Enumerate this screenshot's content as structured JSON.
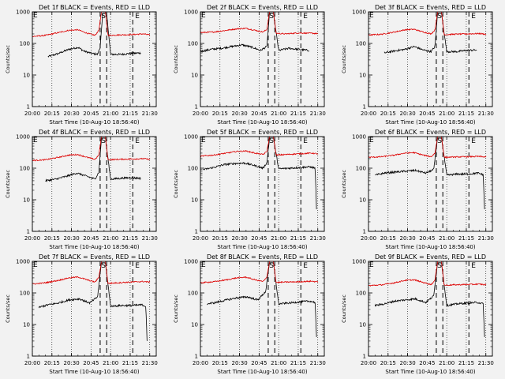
{
  "figure": {
    "background": "#f2f2f2",
    "events_color": "#000000",
    "lld_color": "#dd0000",
    "xlabel": "Start Time (10-Aug-10 18:56:40)",
    "ylabel": "Counts/sec",
    "marker_E": "E",
    "marker_S": "S"
  },
  "chart_data": [
    {
      "type": "line",
      "title": "Det 1f BLACK = Events, RED = LLD",
      "xlim": [
        "20:00",
        "21:35"
      ],
      "ylim": [
        1,
        1000
      ],
      "yscale": "log",
      "grid": "dotted",
      "xticks": [
        "20:00",
        "20:15",
        "20:30",
        "20:45",
        "21:00",
        "21:15",
        "21:30"
      ],
      "yticks": [
        "1",
        "10",
        "100",
        "1000"
      ],
      "dashed_lines_at": [
        "20:52",
        "20:57",
        "21:17"
      ],
      "events_end_dropout": false,
      "series": [
        {
          "name": "Events",
          "color": "#000000",
          "x": [
            "20:12",
            "20:20",
            "20:28",
            "20:35",
            "20:40",
            "20:46",
            "20:50",
            "20:52",
            "20:54",
            "20:57",
            "21:00",
            "21:08",
            "21:15",
            "21:23"
          ],
          "y": [
            38,
            48,
            65,
            75,
            56,
            48,
            45,
            75,
            900,
            900,
            45,
            45,
            48,
            50
          ]
        },
        {
          "name": "LLD",
          "color": "#dd0000",
          "x": [
            "20:00",
            "20:10",
            "20:20",
            "20:28",
            "20:35",
            "20:42",
            "20:48",
            "20:51",
            "20:53",
            "20:56",
            "20:58",
            "21:05",
            "21:15",
            "21:25",
            "21:30"
          ],
          "y": [
            165,
            180,
            220,
            260,
            270,
            210,
            180,
            260,
            1000,
            1000,
            180,
            185,
            190,
            200,
            185
          ]
        }
      ]
    },
    {
      "type": "line",
      "title": "Det 2f BLACK = Events, RED = LLD",
      "xlim": [
        "20:00",
        "21:35"
      ],
      "ylim": [
        1,
        1000
      ],
      "yscale": "log",
      "grid": "dotted",
      "xticks": [
        "20:00",
        "20:15",
        "20:30",
        "20:45",
        "21:00",
        "21:15",
        "21:30"
      ],
      "yticks": [
        "1",
        "10",
        "100",
        "1000"
      ],
      "dashed_lines_at": [
        "20:52",
        "20:57",
        "21:17"
      ],
      "events_end_dropout": false,
      "series": [
        {
          "name": "Events",
          "color": "#000000",
          "x": [
            "20:00",
            "20:08",
            "20:16",
            "20:24",
            "20:32",
            "20:40",
            "20:46",
            "20:51",
            "20:53",
            "20:56",
            "21:00",
            "21:08",
            "21:15",
            "21:23"
          ],
          "y": [
            55,
            65,
            70,
            80,
            90,
            75,
            60,
            80,
            900,
            900,
            60,
            70,
            65,
            60
          ]
        },
        {
          "name": "LLD",
          "color": "#dd0000",
          "x": [
            "20:00",
            "20:10",
            "20:20",
            "20:28",
            "20:35",
            "20:42",
            "20:48",
            "20:51",
            "20:53",
            "20:56",
            "20:58",
            "21:05",
            "21:15",
            "21:25",
            "21:30"
          ],
          "y": [
            220,
            230,
            260,
            290,
            300,
            260,
            230,
            280,
            1000,
            1000,
            210,
            200,
            215,
            210,
            205
          ]
        }
      ]
    },
    {
      "type": "line",
      "title": "Det 3f BLACK = Events, RED = LLD",
      "xlim": [
        "20:00",
        "21:35"
      ],
      "ylim": [
        1,
        1000
      ],
      "yscale": "log",
      "grid": "dotted",
      "xticks": [
        "20:00",
        "20:15",
        "20:30",
        "20:45",
        "21:00",
        "21:15",
        "21:30"
      ],
      "yticks": [
        "1",
        "10",
        "100",
        "1000"
      ],
      "dashed_lines_at": [
        "20:52",
        "20:57",
        "21:17"
      ],
      "events_end_dropout": false,
      "series": [
        {
          "name": "Events",
          "color": "#000000",
          "x": [
            "20:12",
            "20:20",
            "20:28",
            "20:35",
            "20:42",
            "20:48",
            "20:51",
            "20:53",
            "20:56",
            "21:00",
            "21:08",
            "21:15",
            "21:23"
          ],
          "y": [
            50,
            58,
            65,
            80,
            62,
            55,
            80,
            900,
            900,
            55,
            55,
            60,
            62
          ]
        },
        {
          "name": "LLD",
          "color": "#dd0000",
          "x": [
            "20:00",
            "20:10",
            "20:20",
            "20:28",
            "20:35",
            "20:42",
            "20:48",
            "20:51",
            "20:53",
            "20:56",
            "20:58",
            "21:05",
            "21:15",
            "21:25",
            "21:30"
          ],
          "y": [
            185,
            195,
            230,
            270,
            280,
            230,
            200,
            270,
            1000,
            1000,
            190,
            195,
            200,
            205,
            195
          ]
        }
      ]
    },
    {
      "type": "line",
      "title": "Det 4f BLACK = Events, RED = LLD",
      "xlim": [
        "20:00",
        "21:35"
      ],
      "ylim": [
        1,
        1000
      ],
      "yscale": "log",
      "grid": "dotted",
      "xticks": [
        "20:00",
        "20:15",
        "20:30",
        "20:45",
        "21:00",
        "21:15",
        "21:30"
      ],
      "yticks": [
        "1",
        "10",
        "100",
        "1000"
      ],
      "dashed_lines_at": [
        "20:52",
        "20:57",
        "21:17"
      ],
      "events_end_dropout": false,
      "series": [
        {
          "name": "Events",
          "color": "#000000",
          "x": [
            "20:10",
            "20:18",
            "20:26",
            "20:34",
            "20:42",
            "20:48",
            "20:51",
            "20:53",
            "20:56",
            "21:00",
            "21:08",
            "21:15",
            "21:23"
          ],
          "y": [
            40,
            45,
            55,
            70,
            55,
            45,
            75,
            900,
            900,
            45,
            48,
            50,
            48
          ]
        },
        {
          "name": "LLD",
          "color": "#dd0000",
          "x": [
            "20:00",
            "20:10",
            "20:20",
            "20:28",
            "20:35",
            "20:42",
            "20:48",
            "20:51",
            "20:53",
            "20:56",
            "20:58",
            "21:05",
            "21:15",
            "21:25",
            "21:30"
          ],
          "y": [
            175,
            185,
            220,
            260,
            270,
            220,
            190,
            260,
            1000,
            1000,
            185,
            190,
            195,
            200,
            190
          ]
        }
      ]
    },
    {
      "type": "line",
      "title": "Det 5f BLACK = Events, RED = LLD",
      "xlim": [
        "20:00",
        "21:35"
      ],
      "ylim": [
        1,
        1000
      ],
      "yscale": "log",
      "grid": "dotted",
      "xticks": [
        "20:00",
        "20:15",
        "20:30",
        "20:45",
        "21:00",
        "21:15",
        "21:30"
      ],
      "yticks": [
        "1",
        "10",
        "100",
        "1000"
      ],
      "dashed_lines_at": [
        "20:52",
        "20:57",
        "21:17"
      ],
      "events_end_dropout": true,
      "series": [
        {
          "name": "Events",
          "color": "#000000",
          "x": [
            "20:02",
            "20:10",
            "20:18",
            "20:26",
            "20:34",
            "20:42",
            "20:48",
            "20:51",
            "20:53",
            "20:56",
            "21:00",
            "21:08",
            "21:16",
            "21:24",
            "21:28",
            "21:29"
          ],
          "y": [
            90,
            105,
            130,
            140,
            145,
            120,
            100,
            150,
            900,
            900,
            95,
            100,
            105,
            110,
            100,
            5
          ]
        },
        {
          "name": "LLD",
          "color": "#dd0000",
          "x": [
            "20:00",
            "20:10",
            "20:20",
            "20:28",
            "20:35",
            "20:42",
            "20:48",
            "20:51",
            "20:53",
            "20:56",
            "20:58",
            "21:05",
            "21:15",
            "21:25",
            "21:30"
          ],
          "y": [
            240,
            260,
            300,
            340,
            350,
            300,
            270,
            340,
            1000,
            1000,
            260,
            270,
            285,
            300,
            285
          ]
        }
      ]
    },
    {
      "type": "line",
      "title": "Det 6f BLACK = Events, RED = LLD",
      "xlim": [
        "20:00",
        "21:35"
      ],
      "ylim": [
        1,
        1000
      ],
      "yscale": "log",
      "grid": "dotted",
      "xticks": [
        "20:00",
        "20:15",
        "20:30",
        "20:45",
        "21:00",
        "21:15",
        "21:30"
      ],
      "yticks": [
        "1",
        "10",
        "100",
        "1000"
      ],
      "dashed_lines_at": [
        "20:52",
        "20:57",
        "21:17"
      ],
      "events_end_dropout": true,
      "series": [
        {
          "name": "Events",
          "color": "#000000",
          "x": [
            "20:05",
            "20:12",
            "20:20",
            "20:28",
            "20:36",
            "20:44",
            "20:50",
            "20:53",
            "20:56",
            "21:00",
            "21:08",
            "21:16",
            "21:24",
            "21:28",
            "21:29"
          ],
          "y": [
            60,
            70,
            75,
            80,
            85,
            70,
            90,
            900,
            900,
            60,
            65,
            65,
            70,
            62,
            5
          ]
        },
        {
          "name": "LLD",
          "color": "#dd0000",
          "x": [
            "20:00",
            "20:10",
            "20:20",
            "20:28",
            "20:35",
            "20:42",
            "20:48",
            "20:51",
            "20:53",
            "20:56",
            "20:58",
            "21:05",
            "21:15",
            "21:25",
            "21:30"
          ],
          "y": [
            220,
            230,
            260,
            300,
            310,
            260,
            230,
            300,
            1000,
            1000,
            220,
            225,
            230,
            235,
            225
          ]
        }
      ]
    },
    {
      "type": "line",
      "title": "Det 7f BLACK = Events, RED = LLD",
      "xlim": [
        "20:00",
        "21:35"
      ],
      "ylim": [
        1,
        1000
      ],
      "yscale": "log",
      "grid": "dotted",
      "xticks": [
        "20:00",
        "20:15",
        "20:30",
        "20:45",
        "21:00",
        "21:15",
        "21:30"
      ],
      "yticks": [
        "1",
        "10",
        "100",
        "1000"
      ],
      "dashed_lines_at": [
        "20:52",
        "20:57",
        "21:17"
      ],
      "events_end_dropout": true,
      "series": [
        {
          "name": "Events",
          "color": "#000000",
          "x": [
            "20:05",
            "20:12",
            "20:20",
            "20:28",
            "20:36",
            "20:44",
            "20:50",
            "20:53",
            "20:56",
            "21:00",
            "21:08",
            "21:16",
            "21:24",
            "21:27",
            "21:28"
          ],
          "y": [
            35,
            42,
            48,
            60,
            65,
            48,
            75,
            900,
            900,
            38,
            40,
            40,
            42,
            38,
            3
          ]
        },
        {
          "name": "LLD",
          "color": "#dd0000",
          "x": [
            "20:00",
            "20:10",
            "20:20",
            "20:28",
            "20:35",
            "20:42",
            "20:48",
            "20:51",
            "20:53",
            "20:56",
            "20:58",
            "21:05",
            "21:15",
            "21:25",
            "21:30"
          ],
          "y": [
            190,
            210,
            250,
            300,
            320,
            260,
            220,
            310,
            1000,
            1000,
            200,
            210,
            220,
            230,
            220
          ]
        }
      ]
    },
    {
      "type": "line",
      "title": "Det 8f BLACK = Events, RED = LLD",
      "xlim": [
        "20:00",
        "21:35"
      ],
      "ylim": [
        1,
        1000
      ],
      "yscale": "log",
      "grid": "dotted",
      "xticks": [
        "20:00",
        "20:15",
        "20:30",
        "20:45",
        "21:00",
        "21:15",
        "21:30"
      ],
      "yticks": [
        "1",
        "10",
        "100",
        "1000"
      ],
      "dashed_lines_at": [
        "20:52",
        "20:57",
        "21:17"
      ],
      "events_end_dropout": true,
      "series": [
        {
          "name": "Events",
          "color": "#000000",
          "x": [
            "20:05",
            "20:12",
            "20:20",
            "20:28",
            "20:36",
            "20:44",
            "20:50",
            "20:53",
            "20:56",
            "21:00",
            "21:08",
            "21:16",
            "21:24",
            "21:28",
            "21:29"
          ],
          "y": [
            45,
            50,
            60,
            70,
            75,
            60,
            110,
            900,
            900,
            45,
            48,
            52,
            55,
            50,
            4
          ]
        },
        {
          "name": "LLD",
          "color": "#dd0000",
          "x": [
            "20:00",
            "20:10",
            "20:20",
            "20:28",
            "20:35",
            "20:42",
            "20:48",
            "20:51",
            "20:53",
            "20:56",
            "20:58",
            "21:05",
            "21:15",
            "21:25",
            "21:30"
          ],
          "y": [
            210,
            225,
            260,
            300,
            315,
            260,
            230,
            310,
            1000,
            1000,
            215,
            220,
            225,
            235,
            225
          ]
        }
      ]
    },
    {
      "type": "line",
      "title": "Det 9f BLACK = Events, RED = LLD",
      "xlim": [
        "20:00",
        "21:35"
      ],
      "ylim": [
        1,
        1000
      ],
      "yscale": "log",
      "grid": "dotted",
      "xticks": [
        "20:00",
        "20:15",
        "20:30",
        "20:45",
        "21:00",
        "21:15",
        "21:30"
      ],
      "yticks": [
        "1",
        "10",
        "100",
        "1000"
      ],
      "dashed_lines_at": [
        "20:52",
        "20:57",
        "21:17"
      ],
      "events_end_dropout": true,
      "series": [
        {
          "name": "Events",
          "color": "#000000",
          "x": [
            "20:05",
            "20:12",
            "20:20",
            "20:28",
            "20:36",
            "20:44",
            "20:50",
            "20:53",
            "20:56",
            "21:00",
            "21:08",
            "21:16",
            "21:24",
            "21:28",
            "21:29"
          ],
          "y": [
            40,
            45,
            55,
            60,
            65,
            50,
            80,
            900,
            900,
            40,
            45,
            48,
            50,
            45,
            4
          ]
        },
        {
          "name": "LLD",
          "color": "#dd0000",
          "x": [
            "20:00",
            "20:10",
            "20:20",
            "20:28",
            "20:35",
            "20:42",
            "20:48",
            "20:51",
            "20:53",
            "20:56",
            "20:58",
            "21:05",
            "21:15",
            "21:25",
            "21:30"
          ],
          "y": [
            170,
            180,
            210,
            250,
            260,
            215,
            185,
            250,
            1000,
            1000,
            175,
            180,
            185,
            190,
            180
          ]
        }
      ]
    }
  ]
}
